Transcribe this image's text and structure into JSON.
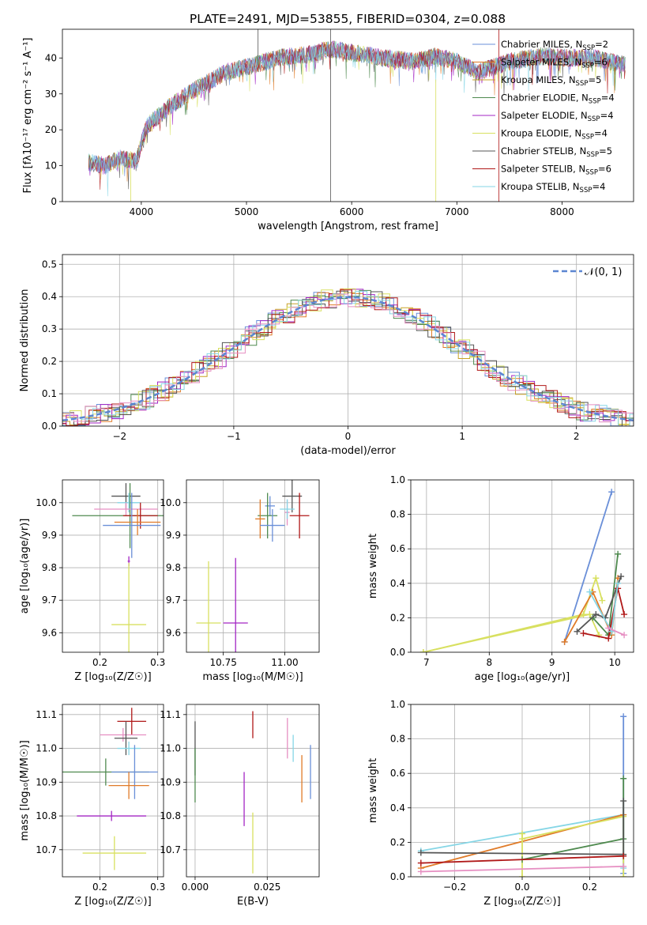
{
  "figure_title": "PLATE=2491, MJD=53855, FIBERID=0304, z=0.088",
  "colors": {
    "chabrier_miles": "#6a8fd8",
    "salpeter_miles": "#e07b28",
    "kroupa_miles": "#c9a227",
    "chabrier_elodie": "#4f8a4f",
    "salpeter_elodie": "#a326c4",
    "kroupa_elodie": "#d8e060",
    "chabrier_stelib": "#555555",
    "salpeter_stelib": "#b01818",
    "kroupa_stelib": "#86d6e6",
    "pink": "#e68fc2",
    "normal": "#5b86d1",
    "grid": "#b0b0b0"
  },
  "chart_data": [
    {
      "id": "spectrum",
      "type": "line",
      "xlabel": "wavelength [Angstrom, rest frame]",
      "ylabel": "Flux [fλ10⁻¹⁷ erg cm⁻² s⁻¹ A⁻¹]",
      "xlim": [
        3250,
        8680
      ],
      "ylim": [
        0,
        48
      ],
      "xticks": [
        4000,
        5000,
        6000,
        7000,
        8000
      ],
      "yticks": [
        0,
        10,
        20,
        30,
        40
      ],
      "grid": false,
      "legend_position": "right",
      "continuum": {
        "x": [
          3500,
          3650,
          3800,
          3950,
          4050,
          4250,
          4500,
          4800,
          5000,
          5300,
          5600,
          5800,
          6000,
          6300,
          6600,
          6800,
          7000,
          7200,
          7500,
          7800,
          8100,
          8300,
          8600
        ],
        "y": [
          11,
          10,
          12,
          11,
          21,
          26,
          31,
          36,
          37.5,
          40,
          41,
          42.5,
          41.5,
          40,
          39,
          40.5,
          39,
          36,
          39,
          40.5,
          40,
          40,
          38
        ]
      },
      "legend": [
        {
          "name": "Chabrier MILES, N",
          "sub": "SSP",
          "tail": "=2"
        },
        {
          "name": "Salpeter MILES, N",
          "sub": "SSP",
          "tail": "=6"
        },
        {
          "name": "Kroupa MILES, N",
          "sub": "SSP",
          "tail": "=5"
        },
        {
          "name": "Chabrier ELODIE, N",
          "sub": "SSP",
          "tail": "=4"
        },
        {
          "name": "Salpeter ELODIE, N",
          "sub": "SSP",
          "tail": "=4"
        },
        {
          "name": "Kroupa ELODIE, N",
          "sub": "SSP",
          "tail": "=4"
        },
        {
          "name": "Chabrier STELIB, N",
          "sub": "SSP",
          "tail": "=5"
        },
        {
          "name": "Salpeter STELIB, N",
          "sub": "SSP",
          "tail": "=6"
        },
        {
          "name": "Kroupa STELIB, N",
          "sub": "SSP",
          "tail": "=4"
        }
      ]
    },
    {
      "id": "residuals",
      "type": "line",
      "xlabel": "(data-model)/error",
      "ylabel": "Normed distribution",
      "xlim": [
        -2.5,
        2.5
      ],
      "ylim": [
        0,
        0.53
      ],
      "xticks": [
        -2,
        -1,
        0,
        1,
        2
      ],
      "yticks": [
        0.0,
        0.1,
        0.2,
        0.3,
        0.4,
        0.5
      ],
      "grid": true,
      "legend_label": "𝒩(0, 1)",
      "legend_position": "top-right"
    },
    {
      "id": "age_vs_z",
      "type": "scatter",
      "xlabel": "Z [log₁₀(Z/Z☉)]",
      "ylabel": "age  [log₁₀(age/yr)]",
      "xlim": [
        0.135,
        0.31
      ],
      "ylim": [
        9.54,
        10.07
      ],
      "xticks": [
        0.2,
        0.3
      ],
      "yticks": [
        9.6,
        9.7,
        9.8,
        9.9,
        10.0
      ],
      "points": [
        {
          "c": "chabrier_stelib",
          "x": 0.245,
          "y": 10.02,
          "xe": 0.025,
          "ye": 0.04
        },
        {
          "c": "kroupa_stelib",
          "x": 0.25,
          "y": 10.0,
          "xe": 0.02,
          "ye": 0.03
        },
        {
          "c": "chabrier_elodie",
          "x": 0.252,
          "y": 9.96,
          "xe": 0.1,
          "ye": 0.1
        },
        {
          "c": "pink",
          "x": 0.245,
          "y": 9.98,
          "xe": 0.055,
          "ye": 0.02
        },
        {
          "c": "salpeter_stelib",
          "x": 0.27,
          "y": 9.96,
          "xe": 0.03,
          "ye": 0.04
        },
        {
          "c": "salpeter_miles",
          "x": 0.265,
          "y": 9.94,
          "xe": 0.04,
          "ye": 0.04
        },
        {
          "c": "chabrier_miles",
          "x": 0.255,
          "y": 9.93,
          "xe": 0.05,
          "ye": 0.1
        },
        {
          "c": "salpeter_elodie",
          "x": 0.25,
          "y": 9.82,
          "xe": 0.002,
          "ye": 0.015
        },
        {
          "c": "kroupa_elodie",
          "x": 0.25,
          "y": 9.625,
          "xe": 0.03,
          "ye": 0.19
        }
      ]
    },
    {
      "id": "age_vs_mass",
      "type": "scatter",
      "xlabel": "mass [log₁₀(M/M☉)]",
      "ylabel": "",
      "xlim": [
        10.6,
        11.14
      ],
      "ylim": [
        9.54,
        10.07
      ],
      "xticks": [
        10.75,
        11.0
      ],
      "yticks": [
        9.6,
        9.7,
        9.8,
        9.9,
        10.0
      ],
      "points": [
        {
          "c": "chabrier_stelib",
          "x": 11.03,
          "y": 10.02,
          "xe": 0.04,
          "ye": 0.05
        },
        {
          "c": "chabrier_miles",
          "x": 10.94,
          "y": 9.99,
          "xe": 0.02,
          "ye": 0.03
        },
        {
          "c": "chabrier_elodie",
          "x": 10.93,
          "y": 9.96,
          "xe": 0.04,
          "ye": 0.07
        },
        {
          "c": "pink",
          "x": 11.01,
          "y": 9.97,
          "xe": 0.01,
          "ye": 0.04
        },
        {
          "c": "salpeter_stelib",
          "x": 11.06,
          "y": 9.96,
          "xe": 0.04,
          "ye": 0.07
        },
        {
          "c": "salpeter_miles",
          "x": 10.9,
          "y": 9.95,
          "xe": 0.02,
          "ye": 0.06
        },
        {
          "c": "chabrier_miles",
          "x": 10.95,
          "y": 9.93,
          "xe": 0.05,
          "ye": 0.05
        },
        {
          "c": "kroupa_stelib",
          "x": 11.01,
          "y": 9.98,
          "xe": 0.03,
          "ye": 0.03
        },
        {
          "c": "salpeter_elodie",
          "x": 10.8,
          "y": 9.63,
          "xe": 0.05,
          "ye": 0.2
        },
        {
          "c": "kroupa_elodie",
          "x": 10.69,
          "y": 9.63,
          "xe": 0.05,
          "ye": 0.19
        }
      ]
    },
    {
      "id": "weight_vs_age",
      "type": "line",
      "xlabel": "age  [log₁₀(age/yr)]",
      "ylabel": "mass weight",
      "xlim": [
        6.75,
        10.3
      ],
      "ylim": [
        0,
        1.0
      ],
      "xticks": [
        7,
        8,
        9,
        10
      ],
      "yticks": [
        0.0,
        0.2,
        0.4,
        0.6,
        0.8,
        1.0
      ],
      "series": [
        {
          "c": "chabrier_miles",
          "x": [
            9.2,
            9.95
          ],
          "y": [
            0.06,
            0.93
          ]
        },
        {
          "c": "kroupa_elodie",
          "x": [
            6.95,
            9.5,
            9.7,
            9.8
          ],
          "y": [
            0.0,
            0.22,
            0.43,
            0.3
          ]
        },
        {
          "c": "kroupa_elodie",
          "x": [
            6.95,
            9.6,
            9.75
          ],
          "y": [
            0.0,
            0.22,
            0.1
          ]
        },
        {
          "c": "salpeter_miles",
          "x": [
            9.2,
            9.65,
            9.95,
            10.05
          ],
          "y": [
            0.06,
            0.35,
            0.1,
            0.43
          ]
        },
        {
          "c": "chabrier_elodie",
          "x": [
            9.65,
            9.9,
            10.05
          ],
          "y": [
            0.2,
            0.1,
            0.57
          ]
        },
        {
          "c": "chabrier_stelib",
          "x": [
            9.4,
            9.7,
            9.85,
            10.1
          ],
          "y": [
            0.12,
            0.22,
            0.2,
            0.44
          ]
        },
        {
          "c": "salpeter_stelib",
          "x": [
            9.5,
            9.9,
            10.05,
            10.15
          ],
          "y": [
            0.11,
            0.08,
            0.37,
            0.22
          ]
        },
        {
          "c": "kroupa_stelib",
          "x": [
            9.6,
            9.95,
            10.05
          ],
          "y": [
            0.35,
            0.12,
            0.4
          ]
        },
        {
          "c": "pink",
          "x": [
            9.9,
            10.15
          ],
          "y": [
            0.14,
            0.1
          ]
        }
      ]
    },
    {
      "id": "mass_vs_z",
      "type": "scatter",
      "xlabel": "Z [log₁₀(Z/Z☉)]",
      "ylabel": "mass [log₁₀(M/M☉)]",
      "xlim": [
        0.135,
        0.31
      ],
      "ylim": [
        10.62,
        11.13
      ],
      "xticks": [
        0.2,
        0.3
      ],
      "yticks": [
        10.7,
        10.8,
        10.9,
        11.0,
        11.1
      ],
      "points": [
        {
          "c": "salpeter_stelib",
          "x": 0.255,
          "y": 11.08,
          "xe": 0.025,
          "ye": 0.04
        },
        {
          "c": "pink",
          "x": 0.24,
          "y": 11.04,
          "xe": 0.04,
          "ye": 0.02
        },
        {
          "c": "chabrier_stelib",
          "x": 0.245,
          "y": 11.03,
          "xe": 0.02,
          "ye": 0.05
        },
        {
          "c": "kroupa_stelib",
          "x": 0.25,
          "y": 11.0,
          "xe": 0.02,
          "ye": 0.02
        },
        {
          "c": "chabrier_elodie",
          "x": 0.21,
          "y": 10.93,
          "xe": 0.075,
          "ye": 0.04
        },
        {
          "c": "chabrier_miles",
          "x": 0.26,
          "y": 10.93,
          "xe": 0.04,
          "ye": 0.08
        },
        {
          "c": "salpeter_miles",
          "x": 0.25,
          "y": 10.89,
          "xe": 0.035,
          "ye": 0.04
        },
        {
          "c": "salpeter_elodie",
          "x": 0.22,
          "y": 10.8,
          "xe": 0.06,
          "ye": 0.015
        },
        {
          "c": "kroupa_elodie",
          "x": 0.225,
          "y": 10.69,
          "xe": 0.055,
          "ye": 0.05
        }
      ]
    },
    {
      "id": "mass_vs_ebv",
      "type": "scatter",
      "xlabel": "E(B-V)",
      "ylabel": "",
      "xlim": [
        -0.003,
        0.043
      ],
      "ylim": [
        10.62,
        11.13
      ],
      "xticks": [
        0.0,
        0.025
      ],
      "yticks": [
        10.7,
        10.8,
        10.9,
        11.0,
        11.1
      ],
      "points": [
        {
          "c": "salpeter_stelib",
          "x": 0.02,
          "y": 11.07,
          "xe": 0,
          "ye": 0.04
        },
        {
          "c": "pink",
          "x": 0.032,
          "y": 11.03,
          "xe": 0,
          "ye": 0.06
        },
        {
          "c": "kroupa_stelib",
          "x": 0.034,
          "y": 11.0,
          "xe": 0,
          "ye": 0.04
        },
        {
          "c": "chabrier_stelib",
          "x": 0.0,
          "y": 11.0,
          "xe": 0,
          "ye": 0.08
        },
        {
          "c": "chabrier_elodie",
          "x": 0.0,
          "y": 10.92,
          "xe": 0,
          "ye": 0.08
        },
        {
          "c": "chabrier_miles",
          "x": 0.04,
          "y": 10.93,
          "xe": 0,
          "ye": 0.08
        },
        {
          "c": "salpeter_miles",
          "x": 0.037,
          "y": 10.91,
          "xe": 0,
          "ye": 0.07
        },
        {
          "c": "salpeter_elodie",
          "x": 0.017,
          "y": 10.85,
          "xe": 0,
          "ye": 0.08
        },
        {
          "c": "kroupa_elodie",
          "x": 0.02,
          "y": 10.72,
          "xe": 0,
          "ye": 0.09
        }
      ]
    },
    {
      "id": "weight_vs_z",
      "type": "line",
      "xlabel": "Z [log₁₀(Z/Z☉)]",
      "ylabel": "mass weight",
      "xlim": [
        -0.33,
        0.33
      ],
      "ylim": [
        0,
        1.0
      ],
      "xticks": [
        -0.2,
        0.0,
        0.2
      ],
      "yticks": [
        0.0,
        0.2,
        0.4,
        0.6,
        0.8,
        1.0
      ],
      "series": [
        {
          "c": "chabrier_miles",
          "x": [
            0.3,
            0.3
          ],
          "y": [
            0.93,
            0.02
          ]
        },
        {
          "c": "kroupa_stelib",
          "x": [
            -0.3,
            0.3,
            0.3
          ],
          "y": [
            0.15,
            0.36,
            0.05
          ]
        },
        {
          "c": "salpeter_miles",
          "x": [
            -0.3,
            0.3
          ],
          "y": [
            0.05,
            0.36
          ]
        },
        {
          "c": "kroupa_elodie",
          "x": [
            0.0,
            0.3,
            0.3
          ],
          "y": [
            0.22,
            0.35,
            0.0
          ]
        },
        {
          "c": "kroupa_elodie",
          "x": [
            0.0,
            0.0
          ],
          "y": [
            0.0,
            0.25
          ]
        },
        {
          "c": "chabrier_elodie",
          "x": [
            0.0,
            0.3,
            0.3
          ],
          "y": [
            0.1,
            0.22,
            0.57
          ]
        },
        {
          "c": "chabrier_stelib",
          "x": [
            -0.3,
            0.3,
            0.3
          ],
          "y": [
            0.14,
            0.13,
            0.44
          ]
        },
        {
          "c": "salpeter_stelib",
          "x": [
            -0.3,
            0.3
          ],
          "y": [
            0.08,
            0.12
          ]
        },
        {
          "c": "pink",
          "x": [
            -0.3,
            0.3
          ],
          "y": [
            0.03,
            0.06
          ]
        }
      ]
    }
  ]
}
